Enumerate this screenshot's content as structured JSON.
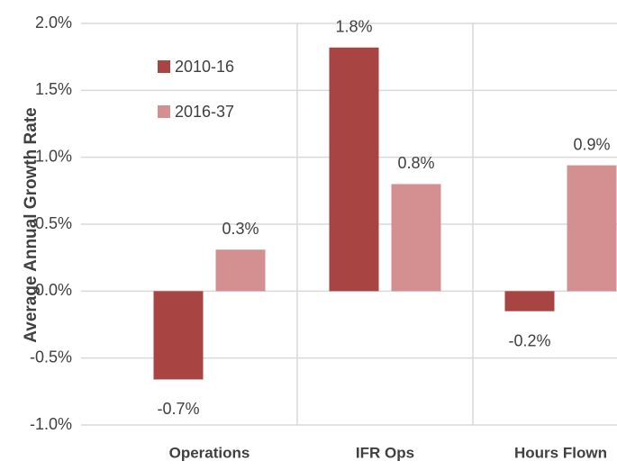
{
  "chart_data": {
    "type": "bar",
    "y_label": "Average Annual Growth Rate",
    "categories": [
      "Operations",
      "IFR Ops",
      "Hours Flown"
    ],
    "series": [
      {
        "name": "2010-16",
        "color": "#a84442",
        "values": [
          -0.66,
          1.82,
          -0.15
        ],
        "value_labels": [
          "-0.7%",
          "1.8%",
          "-0.2%"
        ]
      },
      {
        "name": "2016-37",
        "color": "#d49090",
        "values": [
          0.31,
          0.8,
          0.94
        ],
        "value_labels": [
          "0.3%",
          "0.8%",
          "0.9%"
        ]
      }
    ],
    "ylim": [
      -1,
      2
    ],
    "yticks": [
      {
        "value": -1,
        "label": "-1.0%"
      },
      {
        "value": -0.5,
        "label": "-0.5%"
      },
      {
        "value": 0,
        "label": "0.0%"
      },
      {
        "value": 0.5,
        "label": "0.5%"
      },
      {
        "value": 1,
        "label": "1.0%"
      },
      {
        "value": 1.5,
        "label": "1.5%"
      },
      {
        "value": 2,
        "label": "2.0%"
      }
    ],
    "grid": true,
    "legend": "top-left"
  }
}
